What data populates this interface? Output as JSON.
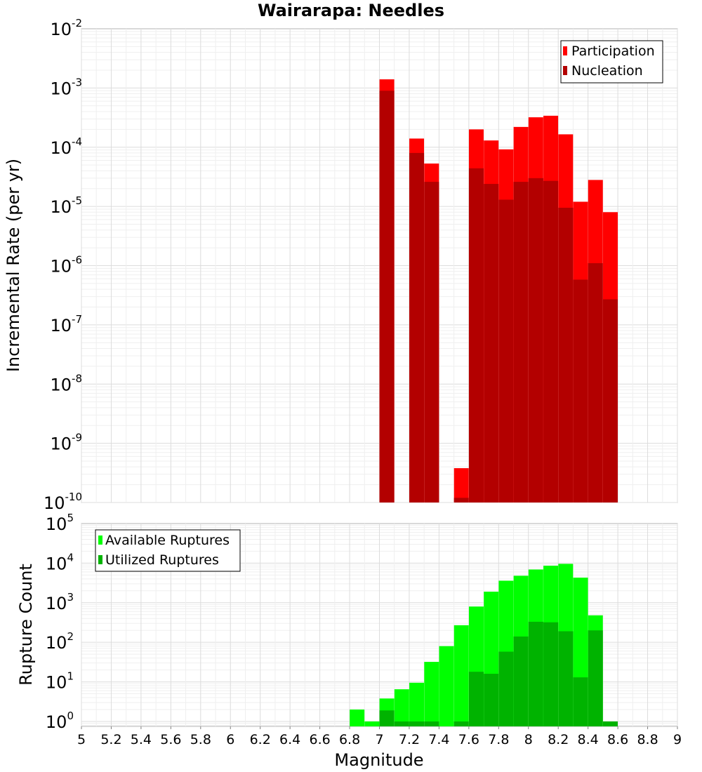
{
  "chart_data": [
    {
      "panel": "top",
      "type": "bar",
      "title": "Wairarapa: Needles",
      "xlabel": "",
      "ylabel": "Incremental Rate (per yr)",
      "xlim": [
        5,
        9
      ],
      "yscale": "log",
      "ylim": [
        1e-10,
        0.01
      ],
      "grid": true,
      "legend_position": "top-right",
      "series": [
        {
          "name": "Participation",
          "color": "#ff0000",
          "points": [
            [
              7.05,
              0.0014
            ],
            [
              7.25,
              0.00014
            ],
            [
              7.35,
              5.3e-05
            ],
            [
              7.55,
              3.8e-10
            ],
            [
              7.65,
              0.0002
            ],
            [
              7.75,
              0.00013
            ],
            [
              7.85,
              9.2e-05
            ],
            [
              7.95,
              0.00022
            ],
            [
              8.05,
              0.00032
            ],
            [
              8.15,
              0.00034
            ],
            [
              8.25,
              0.000165
            ],
            [
              8.35,
              1.2e-05
            ],
            [
              8.45,
              2.8e-05
            ],
            [
              8.55,
              8e-06
            ]
          ]
        },
        {
          "name": "Nucleation",
          "color": "#b30000",
          "points": [
            [
              7.05,
              0.0009
            ],
            [
              7.25,
              8e-05
            ],
            [
              7.35,
              2.6e-05
            ],
            [
              7.55,
              1.2e-10
            ],
            [
              7.65,
              4.4e-05
            ],
            [
              7.75,
              2.4e-05
            ],
            [
              7.85,
              1.3e-05
            ],
            [
              7.95,
              2.6e-05
            ],
            [
              8.05,
              3e-05
            ],
            [
              8.15,
              2.7e-05
            ],
            [
              8.25,
              9.5e-06
            ],
            [
              8.35,
              5.8e-07
            ],
            [
              8.45,
              1.1e-06
            ],
            [
              8.55,
              2.7e-07
            ]
          ]
        }
      ]
    },
    {
      "panel": "bottom",
      "type": "bar",
      "title": "",
      "xlabel": "Magnitude",
      "ylabel": "Rupture Count",
      "xlim": [
        5,
        9
      ],
      "xticks": [
        "5",
        "5.2",
        "5.4",
        "5.6",
        "5.8",
        "6",
        "6.2",
        "6.4",
        "6.6",
        "6.8",
        "7",
        "7.2",
        "7.4",
        "7.6",
        "7.8",
        "8",
        "8.2",
        "8.4",
        "8.6",
        "8.8",
        "9"
      ],
      "yscale": "log",
      "ylim": [
        0.75,
        100000.0
      ],
      "grid": true,
      "legend_position": "top-left",
      "series": [
        {
          "name": "Available Ruptures",
          "color": "#00ff00",
          "points": [
            [
              6.85,
              2
            ],
            [
              6.95,
              1
            ],
            [
              7.05,
              3.8
            ],
            [
              7.15,
              6.5
            ],
            [
              7.25,
              9.5
            ],
            [
              7.35,
              32
            ],
            [
              7.45,
              80
            ],
            [
              7.55,
              270
            ],
            [
              7.65,
              800
            ],
            [
              7.75,
              1900
            ],
            [
              7.85,
              3600
            ],
            [
              7.95,
              4800
            ],
            [
              8.05,
              6900
            ],
            [
              8.15,
              8600
            ],
            [
              8.25,
              9600
            ],
            [
              8.35,
              4300
            ],
            [
              8.45,
              480
            ]
          ]
        },
        {
          "name": "Utilized Ruptures",
          "color": "#00b300",
          "points": [
            [
              7.05,
              1.9
            ],
            [
              7.15,
              1
            ],
            [
              7.25,
              1
            ],
            [
              7.35,
              1
            ],
            [
              7.55,
              1
            ],
            [
              7.65,
              18
            ],
            [
              7.75,
              16
            ],
            [
              7.85,
              58
            ],
            [
              7.95,
              140
            ],
            [
              8.05,
              330
            ],
            [
              8.15,
              320
            ],
            [
              8.25,
              190
            ],
            [
              8.35,
              13
            ],
            [
              8.45,
              200
            ],
            [
              8.55,
              1
            ]
          ]
        }
      ]
    }
  ]
}
